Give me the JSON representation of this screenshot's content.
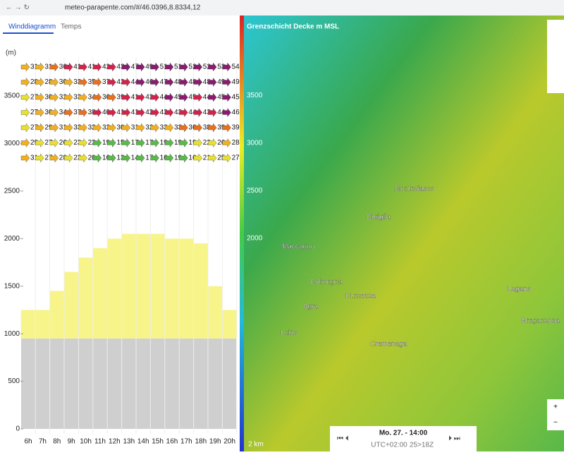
{
  "browser": {
    "url": "meteo-parapente.com/#/46.0396,8.8334,12"
  },
  "tabs": [
    "Winddiagramm",
    "Temps"
  ],
  "chart_data": {
    "type": "wind-grid",
    "y_label": "(m)",
    "ylim": [
      0,
      3900
    ],
    "yticks": [
      0,
      500,
      1000,
      1500,
      2000,
      2500,
      3000,
      3500
    ],
    "categories": [
      "6h",
      "7h",
      "8h",
      "9h",
      "10h",
      "11h",
      "12h",
      "13h",
      "14h",
      "15h",
      "16h",
      "17h",
      "18h",
      "19h",
      "20h"
    ],
    "ground": 950,
    "boundary_layer": {
      "color": "#f7f48a",
      "values": [
        1250,
        1250,
        1450,
        1650,
        1800,
        1900,
        2000,
        2050,
        2050,
        2050,
        2000,
        2000,
        1950,
        1500,
        1250
      ]
    },
    "rows": [
      [
        31,
        31,
        36,
        41,
        41,
        42,
        43,
        47,
        49,
        51,
        51,
        52,
        52,
        53,
        54
      ],
      [
        28,
        28,
        30,
        33,
        35,
        37,
        42,
        44,
        46,
        47,
        48,
        48,
        48,
        49,
        49
      ],
      [
        27,
        30,
        32,
        33,
        34,
        36,
        39,
        41,
        42,
        44,
        45,
        45,
        44,
        45,
        45
      ],
      [
        27,
        30,
        34,
        37,
        38,
        40,
        41,
        41,
        42,
        43,
        43,
        44,
        43,
        44,
        46
      ],
      [
        27,
        29,
        31,
        33,
        32,
        32,
        30,
        31,
        32,
        33,
        33,
        36,
        38,
        39,
        39
      ],
      [
        29,
        27,
        26,
        23,
        22,
        19,
        15,
        17,
        17,
        19,
        19,
        19,
        22,
        26,
        28
      ],
      [
        31,
        27,
        28,
        23,
        20,
        16,
        13,
        14,
        17,
        16,
        19,
        16,
        21,
        25,
        27
      ]
    ]
  },
  "map": {
    "legend_title": "Grenzschicht Decke m MSL",
    "colorbar_ticks": [
      2000,
      2500,
      3000,
      3500
    ],
    "places": [
      "Maccagno",
      "Luino",
      "Monteviasco",
      "Curiglia",
      "Dumenza",
      "Agra",
      "Lugano",
      "Breganzona",
      "Cremenaga",
      "Colmegna"
    ],
    "time": "Mo. 27. - 14:00",
    "tz": "UTC+02:00",
    "run": "25>18Z",
    "scale": "2 km"
  }
}
